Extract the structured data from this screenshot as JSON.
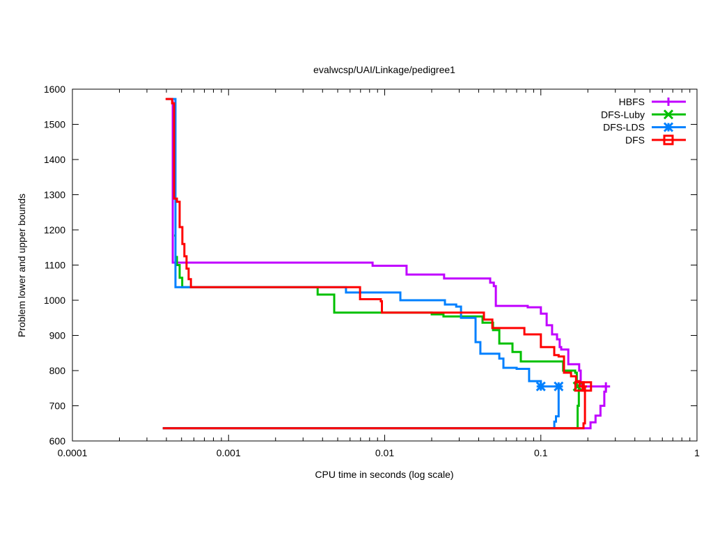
{
  "chart_data": {
    "type": "line",
    "title": "evalwcsp/UAI/Linkage/pedigree1",
    "xlabel": "CPU time in seconds (log scale)",
    "ylabel": "Problem lower and upper bounds",
    "xscale": "log",
    "xlim": [
      0.0001,
      1
    ],
    "ylim": [
      600,
      1600
    ],
    "x_ticks": [
      "0.0001",
      "0.001",
      "0.01",
      "0.1",
      "1"
    ],
    "x_tick_values": [
      0.0001,
      0.001,
      0.01,
      0.1,
      1
    ],
    "y_ticks": [
      "600",
      "700",
      "800",
      "900",
      "1000",
      "1100",
      "1200",
      "1300",
      "1400",
      "1500",
      "1600"
    ],
    "y_tick_values": [
      600,
      700,
      800,
      900,
      1000,
      1100,
      1200,
      1300,
      1400,
      1500,
      1600
    ],
    "grid": false,
    "legend_position": "top-right",
    "series": [
      {
        "name": "HBFS",
        "color": "#c000ff",
        "marker": "plus",
        "upper": [
          [
            0.000439,
            1568
          ],
          [
            0.000439,
            1107
          ],
          [
            0.00836,
            1098
          ],
          [
            0.0138,
            1073
          ],
          [
            0.024,
            1062
          ],
          [
            0.0474,
            1050
          ],
          [
            0.05,
            1040
          ],
          [
            0.0515,
            984
          ],
          [
            0.0824,
            980
          ],
          [
            0.1,
            962
          ],
          [
            0.109,
            929
          ],
          [
            0.118,
            903
          ],
          [
            0.127,
            889
          ],
          [
            0.132,
            867
          ],
          [
            0.135,
            860
          ],
          [
            0.15,
            818
          ],
          [
            0.176,
            800
          ],
          [
            0.18,
            755
          ],
          [
            0.261,
            755
          ]
        ],
        "lower": [
          [
            0.000379,
            636
          ],
          [
            0.197,
            636
          ],
          [
            0.208,
            653
          ],
          [
            0.224,
            672
          ],
          [
            0.241,
            700
          ],
          [
            0.255,
            740
          ],
          [
            0.261,
            755
          ]
        ],
        "markers": [
          [
            0.261,
            755
          ]
        ]
      },
      {
        "name": "DFS-Luby",
        "color": "#00c000",
        "marker": "cross",
        "upper": [
          [
            0.000448,
            1184
          ],
          [
            0.000457,
            1123
          ],
          [
            0.000467,
            1100
          ],
          [
            0.000486,
            1064
          ],
          [
            0.000505,
            1037
          ],
          [
            0.00372,
            1016
          ],
          [
            0.00475,
            965
          ],
          [
            0.02,
            960
          ],
          [
            0.0238,
            954
          ],
          [
            0.0423,
            936
          ],
          [
            0.0494,
            915
          ],
          [
            0.0542,
            877
          ],
          [
            0.0658,
            853
          ],
          [
            0.0744,
            826
          ],
          [
            0.139,
            800
          ],
          [
            0.166,
            794
          ],
          [
            0.17,
            755
          ],
          [
            0.172,
            755
          ]
        ],
        "lower": [
          [
            0.000379,
            636
          ],
          [
            0.168,
            636
          ],
          [
            0.172,
            700
          ],
          [
            0.175,
            755
          ]
        ],
        "markers": [
          [
            0.172,
            755
          ]
        ]
      },
      {
        "name": "DFS-LDS",
        "color": "#0080ff",
        "marker": "star",
        "upper": [
          [
            0.0004,
            1572
          ],
          [
            0.000457,
            1572
          ],
          [
            0.000457,
            1037
          ],
          [
            0.00565,
            1022
          ],
          [
            0.0126,
            1000
          ],
          [
            0.0243,
            988
          ],
          [
            0.0287,
            982
          ],
          [
            0.0308,
            950
          ],
          [
            0.0382,
            881
          ],
          [
            0.041,
            848
          ],
          [
            0.0542,
            834
          ],
          [
            0.0576,
            808
          ],
          [
            0.07,
            805
          ],
          [
            0.0841,
            770
          ],
          [
            0.1,
            755
          ],
          [
            0.13,
            755
          ]
        ],
        "lower": [
          [
            0.000379,
            636
          ],
          [
            0.12,
            636
          ],
          [
            0.122,
            655
          ],
          [
            0.125,
            670
          ],
          [
            0.13,
            755
          ]
        ],
        "markers": [
          [
            0.1,
            755
          ],
          [
            0.13,
            755
          ]
        ]
      },
      {
        "name": "DFS",
        "color": "#ff0000",
        "marker": "square",
        "upper": [
          [
            0.000395,
            1572
          ],
          [
            0.000435,
            1560
          ],
          [
            0.000448,
            1289
          ],
          [
            0.000467,
            1280
          ],
          [
            0.000486,
            1208
          ],
          [
            0.000506,
            1160
          ],
          [
            0.000521,
            1125
          ],
          [
            0.000538,
            1090
          ],
          [
            0.000555,
            1060
          ],
          [
            0.000574,
            1037
          ],
          [
            0.00695,
            1003
          ],
          [
            0.00944,
            997
          ],
          [
            0.0096,
            965
          ],
          [
            0.0432,
            945
          ],
          [
            0.0489,
            921
          ],
          [
            0.0784,
            903
          ],
          [
            0.1001,
            867
          ],
          [
            0.1219,
            844
          ],
          [
            0.13,
            840
          ],
          [
            0.1407,
            794
          ],
          [
            0.156,
            784
          ],
          [
            0.168,
            770
          ],
          [
            0.177,
            755
          ],
          [
            0.197,
            755
          ]
        ],
        "lower": [
          [
            0.000379,
            636
          ],
          [
            0.1875,
            636
          ],
          [
            0.1875,
            650
          ],
          [
            0.1917,
            755
          ]
        ],
        "markers": [
          [
            0.177,
            755
          ],
          [
            0.197,
            755
          ]
        ]
      }
    ]
  }
}
